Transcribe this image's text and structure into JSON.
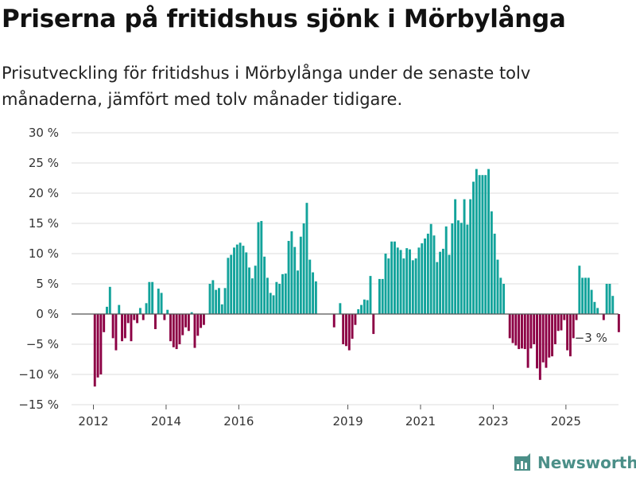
{
  "header": {
    "title": "Priserna på fritidshus sjönk i Mörbylånga",
    "subtitle": "Prisutveckling för fritidshus i Mörbylånga under de senaste tolv månaderna, jämfört med tolv månader tidigare."
  },
  "brand": {
    "name": "Newsworthy"
  },
  "colors": {
    "positive": "#13a39b",
    "negative": "#8c0044",
    "grid": "#dddddd",
    "brand": "#4b8f88"
  },
  "chart_data": {
    "type": "bar",
    "title": "",
    "xlabel": "",
    "ylabel": "",
    "unit": "%",
    "ylim": [
      -15,
      30
    ],
    "yticks": [
      30,
      25,
      20,
      15,
      10,
      5,
      0,
      -5,
      -10,
      -15
    ],
    "ytick_labels": [
      "30 %",
      "25 %",
      "20 %",
      "15 %",
      "10 %",
      "5 %",
      "0 %",
      "−5 %",
      "−10 %",
      "−15 %"
    ],
    "xticks": [
      "2012",
      "2014",
      "2016",
      "2019",
      "2021",
      "2023",
      "2025"
    ],
    "start": "2012-01",
    "annotation": {
      "label": "−3 %",
      "month": "2025-09",
      "value": -3
    },
    "values": [
      -12,
      -10.5,
      -10,
      -3,
      1.2,
      4.5,
      -4,
      -6,
      1.5,
      -4.5,
      -4,
      -1.5,
      -4.5,
      -1,
      -1.5,
      1,
      -1,
      1.8,
      5.3,
      5.3,
      -2.5,
      4.2,
      3.5,
      -1,
      0.7,
      -4.5,
      -5.5,
      -5.8,
      -5,
      -3.5,
      -2.2,
      -2.8,
      0.3,
      -5.6,
      -3.6,
      -2.3,
      -1.8,
      null,
      5,
      5.6,
      4,
      4.3,
      1.6,
      4.3,
      9.3,
      9.8,
      11,
      11.5,
      11.8,
      11.3,
      10.2,
      7.7,
      5.9,
      8,
      15.2,
      15.4,
      9.5,
      6,
      3.5,
      3.1,
      5.3,
      5,
      6.6,
      6.7,
      12.1,
      13.7,
      11.1,
      7.2,
      12.8,
      15,
      18.4,
      9,
      6.9,
      5.4,
      null,
      null,
      null,
      null,
      null,
      -2.2,
      null,
      1.8,
      -5,
      -5.3,
      -6,
      -4.1,
      -1.8,
      0.8,
      1.5,
      2.4,
      2.3,
      6.3,
      -3.3,
      null,
      5.8,
      5.8,
      10,
      9.2,
      12,
      12,
      11,
      10.6,
      9.2,
      10.9,
      10.7,
      8.9,
      9.2,
      11,
      11.7,
      12.5,
      13.3,
      14.9,
      13,
      8.6,
      10.3,
      10.8,
      14.5,
      9.8,
      15,
      19,
      15.5,
      15.1,
      19,
      14.8,
      19,
      21.9,
      24,
      23,
      23,
      23,
      24,
      17,
      13.3,
      9,
      6,
      5,
      null,
      -4,
      -4.8,
      -5.2,
      -5.8,
      -5.7,
      -5.8,
      -8.9,
      -5.7,
      -5,
      -9,
      -10.9,
      -8,
      -8.9,
      -7.2,
      -7,
      -5,
      -2.8,
      -2.7,
      -1,
      -6,
      -7,
      -4,
      -1,
      8,
      6,
      6,
      6,
      4,
      2,
      1,
      null,
      -1,
      5,
      5,
      3,
      null,
      -3
    ]
  }
}
